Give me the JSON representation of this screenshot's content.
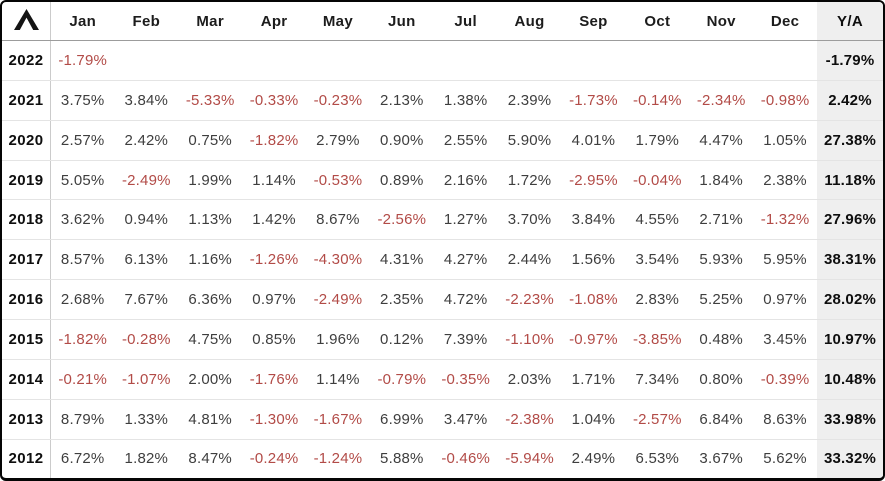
{
  "logo_icon": "lambda-caret-icon",
  "colors": {
    "negative_text": "#b24b47",
    "positive_text": "#3e3e3e",
    "year_text": "#0e0e0e",
    "ytd_background": "#efefef",
    "outer_border": "#050505",
    "header_rule": "#9c9c9c",
    "row_rule": "#e4e4e4"
  },
  "chart_data": {
    "type": "table",
    "columns": [
      "Jan",
      "Feb",
      "Mar",
      "Apr",
      "May",
      "Jun",
      "Jul",
      "Aug",
      "Sep",
      "Oct",
      "Nov",
      "Dec"
    ],
    "ytd_column": "Y/A",
    "rows": [
      {
        "year": "2022",
        "values": [
          "-1.79%",
          "",
          "",
          "",
          "",
          "",
          "",
          "",
          "",
          "",
          "",
          ""
        ],
        "ytd": "-1.79%"
      },
      {
        "year": "2021",
        "values": [
          "3.75%",
          "3.84%",
          "-5.33%",
          "-0.33%",
          "-0.23%",
          "2.13%",
          "1.38%",
          "2.39%",
          "-1.73%",
          "-0.14%",
          "-2.34%",
          "-0.98%"
        ],
        "ytd": "2.42%"
      },
      {
        "year": "2020",
        "values": [
          "2.57%",
          "2.42%",
          "0.75%",
          "-1.82%",
          "2.79%",
          "0.90%",
          "2.55%",
          "5.90%",
          "4.01%",
          "1.79%",
          "4.47%",
          "1.05%"
        ],
        "ytd": "27.38%"
      },
      {
        "year": "2019",
        "values": [
          "5.05%",
          "-2.49%",
          "1.99%",
          "1.14%",
          "-0.53%",
          "0.89%",
          "2.16%",
          "1.72%",
          "-2.95%",
          "-0.04%",
          "1.84%",
          "2.38%"
        ],
        "ytd": "11.18%"
      },
      {
        "year": "2018",
        "values": [
          "3.62%",
          "0.94%",
          "1.13%",
          "1.42%",
          "8.67%",
          "-2.56%",
          "1.27%",
          "3.70%",
          "3.84%",
          "4.55%",
          "2.71%",
          "-1.32%"
        ],
        "ytd": "27.96%"
      },
      {
        "year": "2017",
        "values": [
          "8.57%",
          "6.13%",
          "1.16%",
          "-1.26%",
          "-4.30%",
          "4.31%",
          "4.27%",
          "2.44%",
          "1.56%",
          "3.54%",
          "5.93%",
          "5.95%"
        ],
        "ytd": "38.31%"
      },
      {
        "year": "2016",
        "values": [
          "2.68%",
          "7.67%",
          "6.36%",
          "0.97%",
          "-2.49%",
          "2.35%",
          "4.72%",
          "-2.23%",
          "-1.08%",
          "2.83%",
          "5.25%",
          "0.97%"
        ],
        "ytd": "28.02%"
      },
      {
        "year": "2015",
        "values": [
          "-1.82%",
          "-0.28%",
          "4.75%",
          "0.85%",
          "1.96%",
          "0.12%",
          "7.39%",
          "-1.10%",
          "-0.97%",
          "-3.85%",
          "0.48%",
          "3.45%"
        ],
        "ytd": "10.97%"
      },
      {
        "year": "2014",
        "values": [
          "-0.21%",
          "-1.07%",
          "2.00%",
          "-1.76%",
          "1.14%",
          "-0.79%",
          "-0.35%",
          "2.03%",
          "1.71%",
          "7.34%",
          "0.80%",
          "-0.39%"
        ],
        "ytd": "10.48%"
      },
      {
        "year": "2013",
        "values": [
          "8.79%",
          "1.33%",
          "4.81%",
          "-1.30%",
          "-1.67%",
          "6.99%",
          "3.47%",
          "-2.38%",
          "1.04%",
          "-2.57%",
          "6.84%",
          "8.63%"
        ],
        "ytd": "33.98%"
      },
      {
        "year": "2012",
        "values": [
          "6.72%",
          "1.82%",
          "8.47%",
          "-0.24%",
          "-1.24%",
          "5.88%",
          "-0.46%",
          "-5.94%",
          "2.49%",
          "6.53%",
          "3.67%",
          "5.62%"
        ],
        "ytd": "33.32%"
      }
    ]
  }
}
